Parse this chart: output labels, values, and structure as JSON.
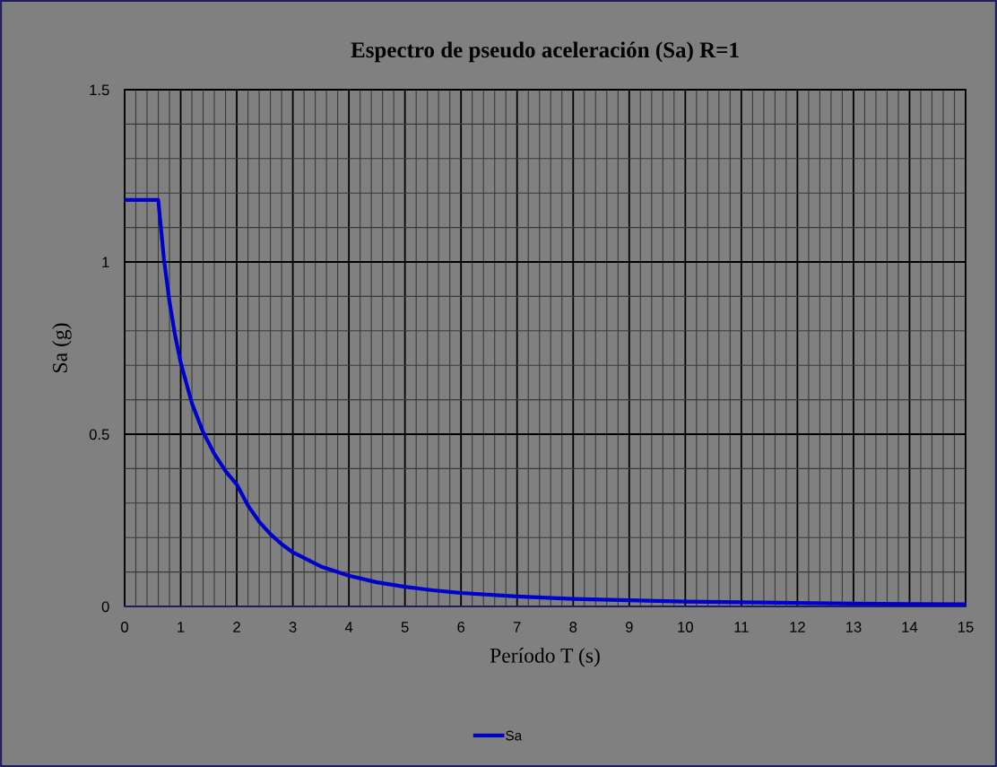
{
  "chart_data": {
    "type": "line",
    "title": "Espectro de pseudo aceleración (Sa) R=1",
    "xlabel": "Período T (s)",
    "ylabel": "Sa (g)",
    "x": [
      0,
      0.6,
      0.7,
      0.8,
      0.9,
      1,
      1.2,
      1.4,
      1.6,
      1.8,
      2,
      2.2,
      2.4,
      2.6,
      2.8,
      3,
      3.5,
      4,
      4.5,
      5,
      5.5,
      6,
      7,
      8,
      9,
      10,
      11,
      12,
      13,
      14,
      15
    ],
    "series": [
      {
        "name": "Sa",
        "color": "#0000cc",
        "values": [
          1.18,
          1.18,
          1.01,
          0.885,
          0.787,
          0.708,
          0.59,
          0.506,
          0.443,
          0.393,
          0.354,
          0.293,
          0.246,
          0.21,
          0.181,
          0.157,
          0.116,
          0.089,
          0.07,
          0.057,
          0.047,
          0.039,
          0.029,
          0.022,
          0.018,
          0.014,
          0.012,
          0.01,
          0.008,
          0.007,
          0.006
        ]
      }
    ],
    "xlim": [
      0,
      15
    ],
    "xticks": [
      0,
      1,
      2,
      3,
      4,
      5,
      6,
      7,
      8,
      9,
      10,
      11,
      12,
      13,
      14,
      15
    ],
    "ylim": [
      0,
      1.5
    ],
    "yticks": [
      0,
      0.5,
      1,
      1.5
    ],
    "grid": true,
    "legend": "bottom",
    "marker": "none",
    "line_style": "solid"
  }
}
